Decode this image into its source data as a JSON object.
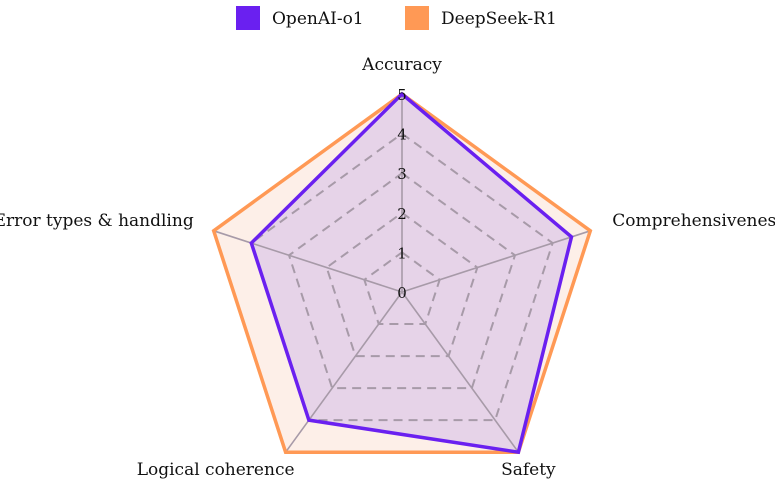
{
  "chart_data": {
    "type": "radar",
    "title": "",
    "axes": [
      "Accuracy",
      "Comprehensiveness",
      "Safety",
      "Logical coherence",
      "Error types & handling"
    ],
    "r_ticks": [
      0,
      1,
      2,
      3,
      4,
      5
    ],
    "r_range": [
      0,
      5
    ],
    "grid": true,
    "legend_position": "top-center",
    "series": [
      {
        "name": "DeepSeek-R1",
        "color": "#FF9955",
        "fill": "#FDEFE8",
        "values": [
          5.0,
          5.0,
          5.0,
          5.0,
          5.0
        ]
      },
      {
        "name": "OpenAI-o1",
        "color": "#6A20F0",
        "fill": "#E6D3E8",
        "values": [
          5.0,
          4.5,
          5.0,
          4.0,
          4.0
        ]
      }
    ]
  }
}
